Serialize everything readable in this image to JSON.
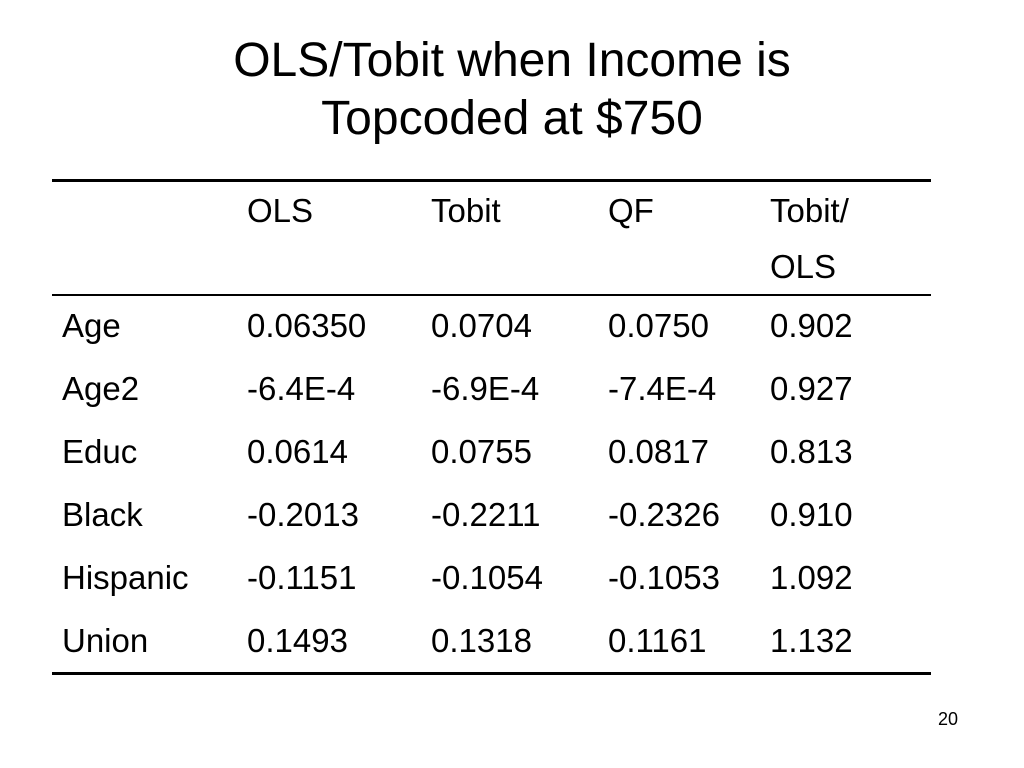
{
  "slide": {
    "title_line1": "OLS/Tobit when Income is",
    "title_line2": "Topcoded at $750",
    "page_number": "20"
  },
  "table": {
    "headers": [
      "",
      "OLS",
      "Tobit",
      "QF",
      "Tobit/",
      "OLS"
    ],
    "rows": [
      {
        "label": "Age",
        "ols": "0.06350",
        "tobit": "0.0704",
        "qf": "0.0750",
        "ratio": "0.902"
      },
      {
        "label": "Age2",
        "ols": "-6.4E-4",
        "tobit": "-6.9E-4",
        "qf": "-7.4E-4",
        "ratio": "0.927"
      },
      {
        "label": "Educ",
        "ols": "0.0614",
        "tobit": "0.0755",
        "qf": "0.0817",
        "ratio": "0.813"
      },
      {
        "label": "Black",
        "ols": "-0.2013",
        "tobit": "-0.2211",
        "qf": "-0.2326",
        "ratio": "0.910"
      },
      {
        "label": "Hispanic",
        "ols": "-0.1151",
        "tobit": "-0.1054",
        "qf": "-0.1053",
        "ratio": "1.092"
      },
      {
        "label": "Union",
        "ols": "0.1493",
        "tobit": "0.1318",
        "qf": "0.1161",
        "ratio": "1.132"
      }
    ]
  }
}
